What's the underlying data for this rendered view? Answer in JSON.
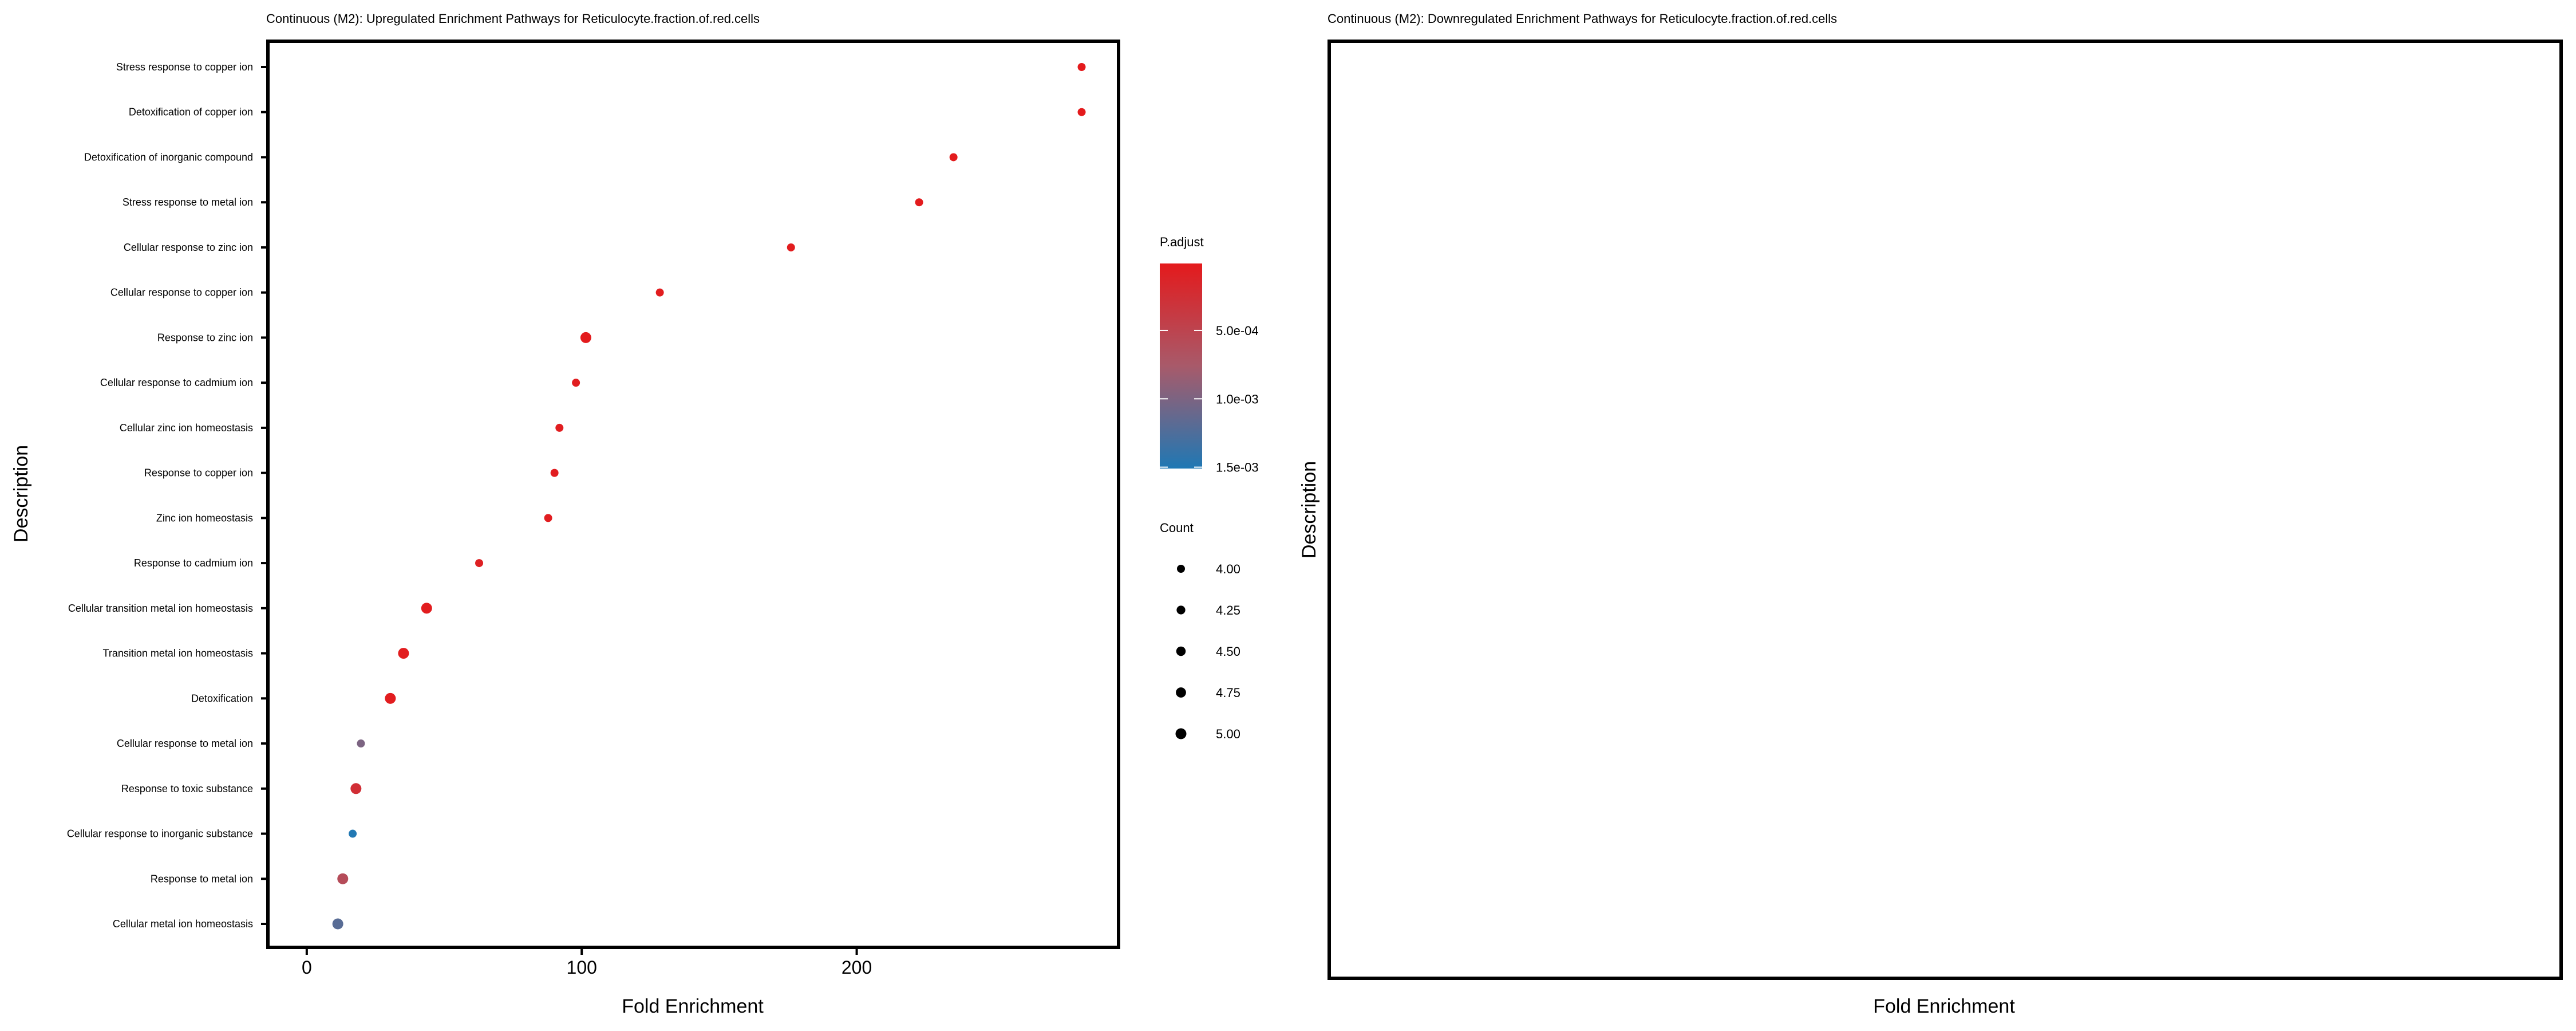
{
  "chart_data": [
    {
      "type": "scatter",
      "title": "Continuous (M2): Upregulated Enrichment Pathways for Reticulocyte.fraction.of.red.cells",
      "xlabel": "Fold Enrichment",
      "ylabel": "Description",
      "xlim": [
        -13.5,
        294.6
      ],
      "xticks": [
        0,
        100,
        200
      ],
      "xtick_labels": [
        "0",
        "100",
        "200"
      ],
      "grid": false,
      "categories": [
        "Stress response to copper ion",
        "Detoxification of copper ion",
        "Detoxification of inorganic compound",
        "Stress response to metal ion",
        "Cellular response to zinc ion",
        "Cellular response to copper ion",
        "Response to zinc ion",
        "Cellular response to cadmium ion",
        "Cellular zinc ion homeostasis",
        "Response to copper ion",
        "Zinc ion homeostasis",
        "Response to cadmium ion",
        "Cellular transition metal ion homeostasis",
        "Transition metal ion homeostasis",
        "Detoxification",
        "Cellular response to metal ion",
        "Response to toxic substance",
        "Cellular response to inorganic substance",
        "Response to metal ion",
        "Cellular metal ion homeostasis"
      ],
      "fold_enrichment": [
        281.8,
        281.8,
        235.2,
        222.7,
        176.1,
        128.4,
        101.5,
        97.9,
        91.9,
        90.1,
        87.8,
        62.7,
        43.6,
        35.2,
        30.4,
        19.7,
        17.9,
        16.7,
        13.1,
        11.3
      ],
      "count": [
        4,
        4,
        4,
        4,
        4,
        4,
        5,
        4,
        4,
        4,
        4,
        4,
        5,
        5,
        5,
        4,
        5,
        4,
        5,
        5
      ],
      "p_adjust": [
        1e-05,
        1e-05,
        2e-05,
        2e-05,
        3e-05,
        4e-05,
        2e-05,
        5e-05,
        5e-05,
        5e-05,
        5e-05,
        8e-05,
        4e-05,
        4e-05,
        4e-05,
        0.001,
        0.00025,
        0.0015,
        0.0006,
        0.0012
      ],
      "color_legend": {
        "title": "P.adjust",
        "range": [
          1e-05,
          0.00151
        ],
        "low_color": "#e41a1c",
        "high_color": "#1f78b4",
        "ticks": [
          0.0005,
          0.001,
          0.0015
        ],
        "tick_labels": [
          "5.0e-04",
          "1.0e-03",
          "1.5e-03"
        ]
      },
      "size_legend": {
        "title": "Count",
        "values": [
          4.0,
          4.25,
          4.5,
          4.75,
          5.0
        ],
        "labels": [
          "4.00",
          "4.25",
          "4.50",
          "4.75",
          "5.00"
        ]
      },
      "legend_placement": "right"
    },
    {
      "type": "scatter",
      "title": "Continuous (M2): Downregulated Enrichment Pathways for Reticulocyte.fraction.of.red.cells",
      "xlabel": "Fold Enrichment",
      "ylabel": "Description",
      "categories": [],
      "fold_enrichment": []
    }
  ]
}
